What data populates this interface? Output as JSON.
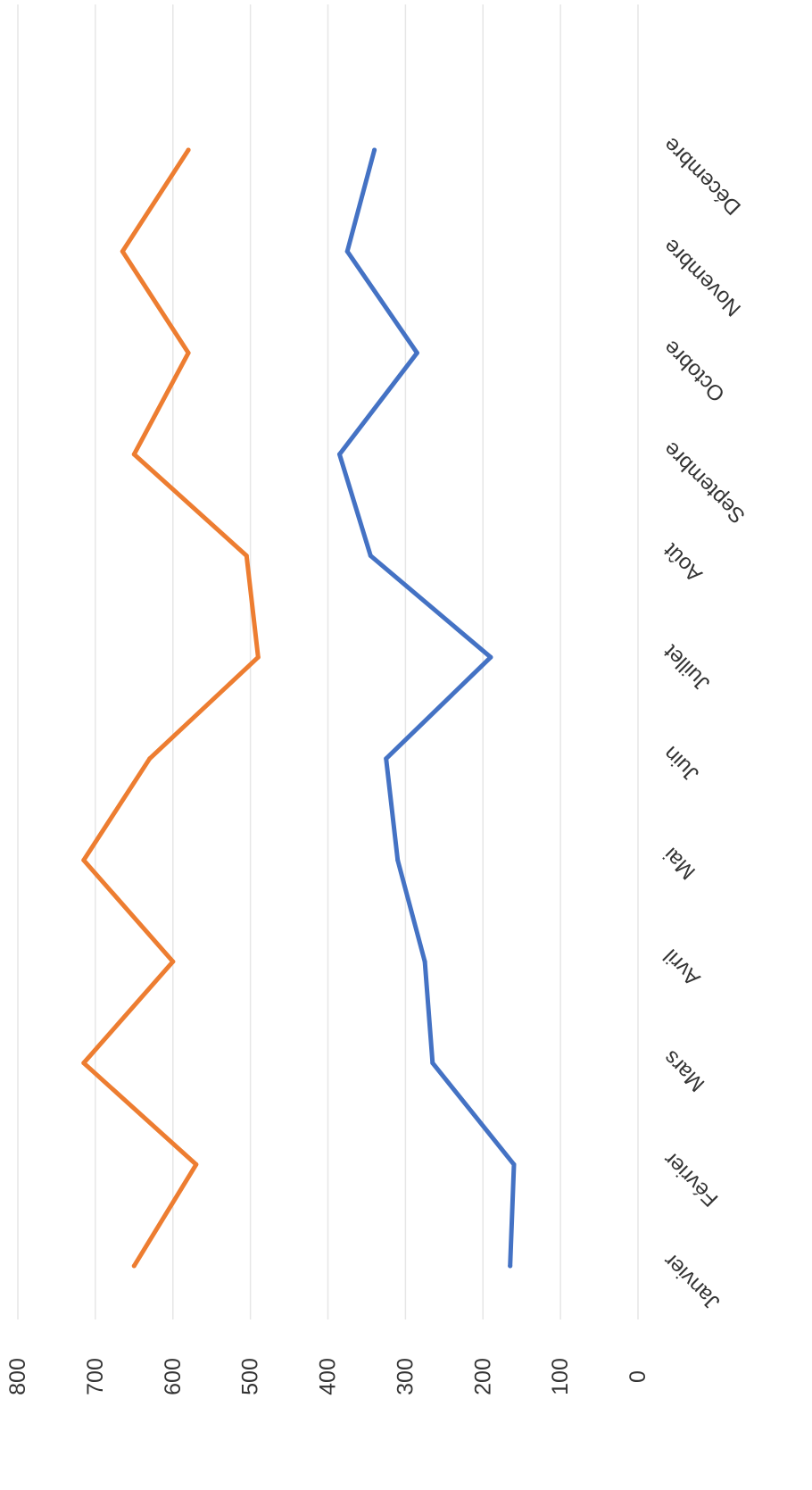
{
  "chart_data": {
    "type": "line",
    "orientation": "rotated-upside-down",
    "categories": [
      "Janvier",
      "Février",
      "Mars",
      "Avril",
      "Mai",
      "Juin",
      "Juillet",
      "Août",
      "Septembre",
      "Octobre",
      "Novembre",
      "Décembre"
    ],
    "series": [
      {
        "color": "#ED7D31",
        "values": [
          650,
          570,
          715,
          600,
          715,
          630,
          490,
          505,
          650,
          580,
          665,
          580
        ]
      },
      {
        "color": "#4472C4",
        "values": [
          165,
          160,
          265,
          275,
          310,
          325,
          190,
          345,
          385,
          285,
          375,
          340
        ]
      }
    ],
    "y_ticks": [
      "0",
      "100",
      "200",
      "300",
      "400",
      "500",
      "600",
      "700",
      "800"
    ],
    "ylim": [
      0,
      800
    ],
    "grid": true,
    "legend": "none",
    "title": "",
    "xlabel": "",
    "ylabel": ""
  }
}
